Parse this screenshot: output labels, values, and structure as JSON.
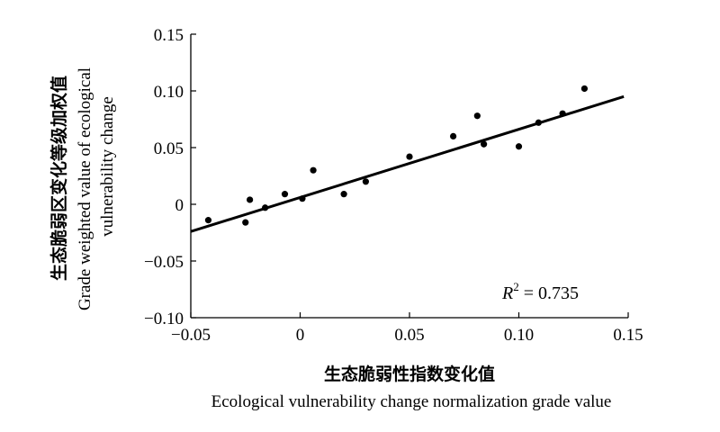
{
  "chart_data": {
    "type": "scatter",
    "xlabel_cn": "生态脆弱性指数变化值",
    "xlabel_en": "Ecological vulnerability change normalization grade value",
    "ylabel_cn": "生态脆弱区变化等级加权值",
    "ylabel_en_line1": "Grade weighted value of ecological",
    "ylabel_en_line2": "vulnerability change",
    "xlim": [
      -0.05,
      0.15
    ],
    "ylim": [
      -0.1,
      0.15
    ],
    "xticks": [
      -0.05,
      0,
      0.05,
      0.1,
      0.15
    ],
    "xtick_labels": [
      "−0.05",
      "0",
      "0.05",
      "0.10",
      "0.15"
    ],
    "yticks": [
      -0.1,
      -0.05,
      0,
      0.05,
      0.1,
      0.15
    ],
    "ytick_labels": [
      "−0.10",
      "−0.05",
      "0",
      "0.05",
      "0.10",
      "0.15"
    ],
    "points": [
      {
        "x": -0.042,
        "y": -0.014
      },
      {
        "x": -0.025,
        "y": -0.016
      },
      {
        "x": -0.023,
        "y": 0.004
      },
      {
        "x": -0.016,
        "y": -0.003
      },
      {
        "x": -0.007,
        "y": 0.009
      },
      {
        "x": 0.001,
        "y": 0.005
      },
      {
        "x": 0.006,
        "y": 0.03
      },
      {
        "x": 0.02,
        "y": 0.009
      },
      {
        "x": 0.03,
        "y": 0.02
      },
      {
        "x": 0.05,
        "y": 0.042
      },
      {
        "x": 0.07,
        "y": 0.06
      },
      {
        "x": 0.081,
        "y": 0.078
      },
      {
        "x": 0.084,
        "y": 0.053
      },
      {
        "x": 0.1,
        "y": 0.051
      },
      {
        "x": 0.109,
        "y": 0.072
      },
      {
        "x": 0.12,
        "y": 0.08
      },
      {
        "x": 0.13,
        "y": 0.102
      }
    ],
    "fit_line": {
      "x": [
        -0.05,
        0.148
      ],
      "y": [
        -0.024,
        0.095
      ]
    },
    "r2_label": "R",
    "r2_sup": "2",
    "r2_text": " = 0.735",
    "grid": false,
    "legend": "none"
  }
}
